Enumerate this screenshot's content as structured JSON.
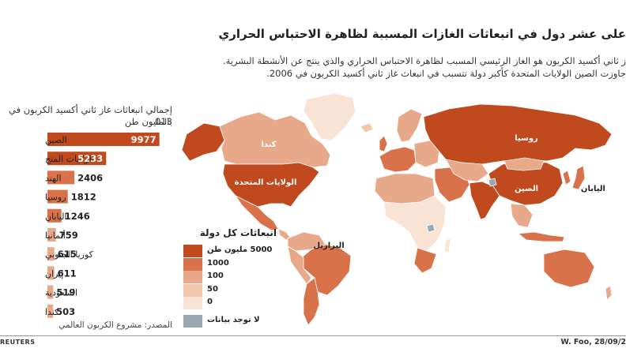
{
  "header": {
    "title": "على عشر دول في انبعاثات الغازات المسببة لظاهرة الاحتباس الحراري",
    "intro_line1": "ز ثاني أكسيد الكربون هو الغاز الرئيسي المسبب لظاهرة الاحتباس الحراري والذي ينتج عن الأنشطة البشرية.",
    "intro_line2": "جاوزت الصين الولايات المتحدة كأكبر دولة تتسبب في انبعاث غاز ثاني أكسيد الكربون في 2006."
  },
  "chart_data": {
    "type": "bar",
    "orientation": "horizontal",
    "title": "إجمالي انبعاثات غاز ثاني أكسيد الكربون في 013",
    "subtitle": "بالمليون طن",
    "categories": [
      "الصين",
      "الولايات المتح",
      "الهند",
      "روسيا",
      "اليابان",
      "ألمانيا",
      "كوريا الجنوبي",
      "إيران",
      "السعودية",
      "كندا"
    ],
    "values": [
      9977,
      5233,
      2406,
      1812,
      1246,
      759,
      615,
      611,
      519,
      503
    ],
    "value_labels": [
      "9977",
      "5233",
      "2406",
      "1812",
      "1246",
      "759",
      "615",
      "611",
      "519",
      "503"
    ],
    "xlim": [
      0,
      10000
    ],
    "bar_color": "#c04a1e",
    "bar_colors": [
      "#c04a1e",
      "#c04a1e",
      "#d9714a",
      "#d9714a",
      "#d9714a",
      "#e7a98a",
      "#e7a98a",
      "#e7a98a",
      "#e7a98a",
      "#e7a98a"
    ],
    "grid": false
  },
  "source": "المصدر: مشروع الكربون العالمي",
  "agency": "REUTERS",
  "credit": "W. Foo, 28/09/2",
  "map": {
    "country_labels": {
      "canada": "كندا",
      "usa": "الولايات المتحدة",
      "brazil": "البرازيل",
      "russia": "روسيا",
      "china": "الصين",
      "japan": "اليابان"
    }
  },
  "legend": {
    "title": "انبعاثات كل دولة",
    "items": [
      {
        "label": "5000 مليون طن",
        "color": "#c04a1e"
      },
      {
        "label": "1000",
        "color": "#d9714a"
      },
      {
        "label": "100",
        "color": "#e7a98a"
      },
      {
        "label": "50",
        "color": "#f0c7ad"
      },
      {
        "label": "0",
        "color": "#f8e3d4"
      },
      {
        "label": "لا توجد بيانات",
        "color": "#9aa6b2"
      }
    ]
  }
}
